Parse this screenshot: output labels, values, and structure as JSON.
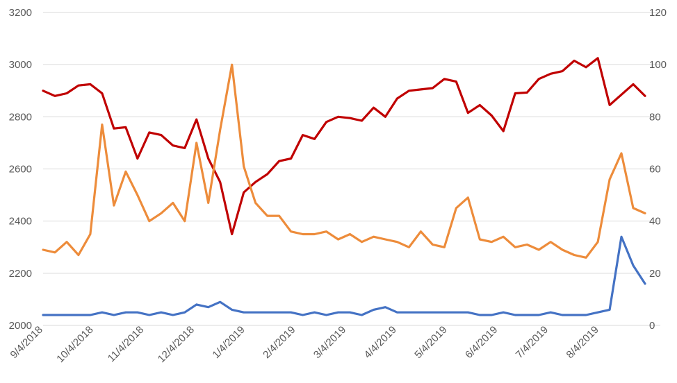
{
  "chart_data": {
    "type": "line",
    "title": "",
    "xlabel": "",
    "ylabel": "",
    "y_left": {
      "ylim": [
        2000,
        3200
      ],
      "ticks": [
        2000,
        2200,
        2400,
        2600,
        2800,
        3000,
        3200
      ]
    },
    "y_right": {
      "ylim": [
        0,
        120
      ],
      "ticks": [
        0,
        20,
        40,
        60,
        80,
        100,
        120
      ]
    },
    "grid": true,
    "legend": "none",
    "x_tick_labels": [
      "9/4/2018",
      "10/4/2018",
      "11/4/2018",
      "12/4/2018",
      "1/4/2019",
      "2/4/2019",
      "3/4/2019",
      "4/4/2019",
      "5/4/2019",
      "6/4/2019",
      "7/4/2019",
      "8/4/2019"
    ],
    "series": [
      {
        "axis": "left",
        "color": "#c00000",
        "values": [
          2900,
          2880,
          2890,
          2920,
          2925,
          2890,
          2755,
          2760,
          2640,
          2740,
          2730,
          2690,
          2680,
          2790,
          2640,
          2550,
          2350,
          2510,
          2550,
          2580,
          2630,
          2640,
          2730,
          2715,
          2780,
          2800,
          2795,
          2785,
          2835,
          2800,
          2870,
          2900,
          2905,
          2910,
          2945,
          2935,
          2815,
          2845,
          2805,
          2745,
          2890,
          2893,
          2945,
          2965,
          2975,
          3015,
          2990,
          3025,
          2845,
          2885,
          2925,
          2880
        ]
      },
      {
        "axis": "right",
        "color": "#ed8c3b",
        "values": [
          29,
          28,
          32,
          27,
          35,
          77,
          46,
          59,
          50,
          40,
          43,
          47,
          40,
          70,
          47,
          75,
          100,
          61,
          47,
          42,
          42,
          36,
          35,
          35,
          36,
          33,
          35,
          32,
          34,
          33,
          32,
          30,
          36,
          31,
          30,
          45,
          49,
          33,
          32,
          34,
          30,
          31,
          29,
          32,
          29,
          27,
          26,
          32,
          56,
          66,
          45,
          43
        ]
      },
      {
        "axis": "right",
        "color": "#4472c4",
        "values": [
          4,
          4,
          4,
          4,
          4,
          5,
          4,
          5,
          5,
          4,
          5,
          4,
          5,
          8,
          7,
          9,
          6,
          5,
          5,
          5,
          5,
          5,
          4,
          5,
          4,
          5,
          5,
          4,
          6,
          7,
          5,
          5,
          5,
          5,
          5,
          5,
          5,
          4,
          4,
          5,
          4,
          4,
          4,
          5,
          4,
          4,
          4,
          5,
          6,
          34,
          23,
          16
        ]
      }
    ]
  }
}
